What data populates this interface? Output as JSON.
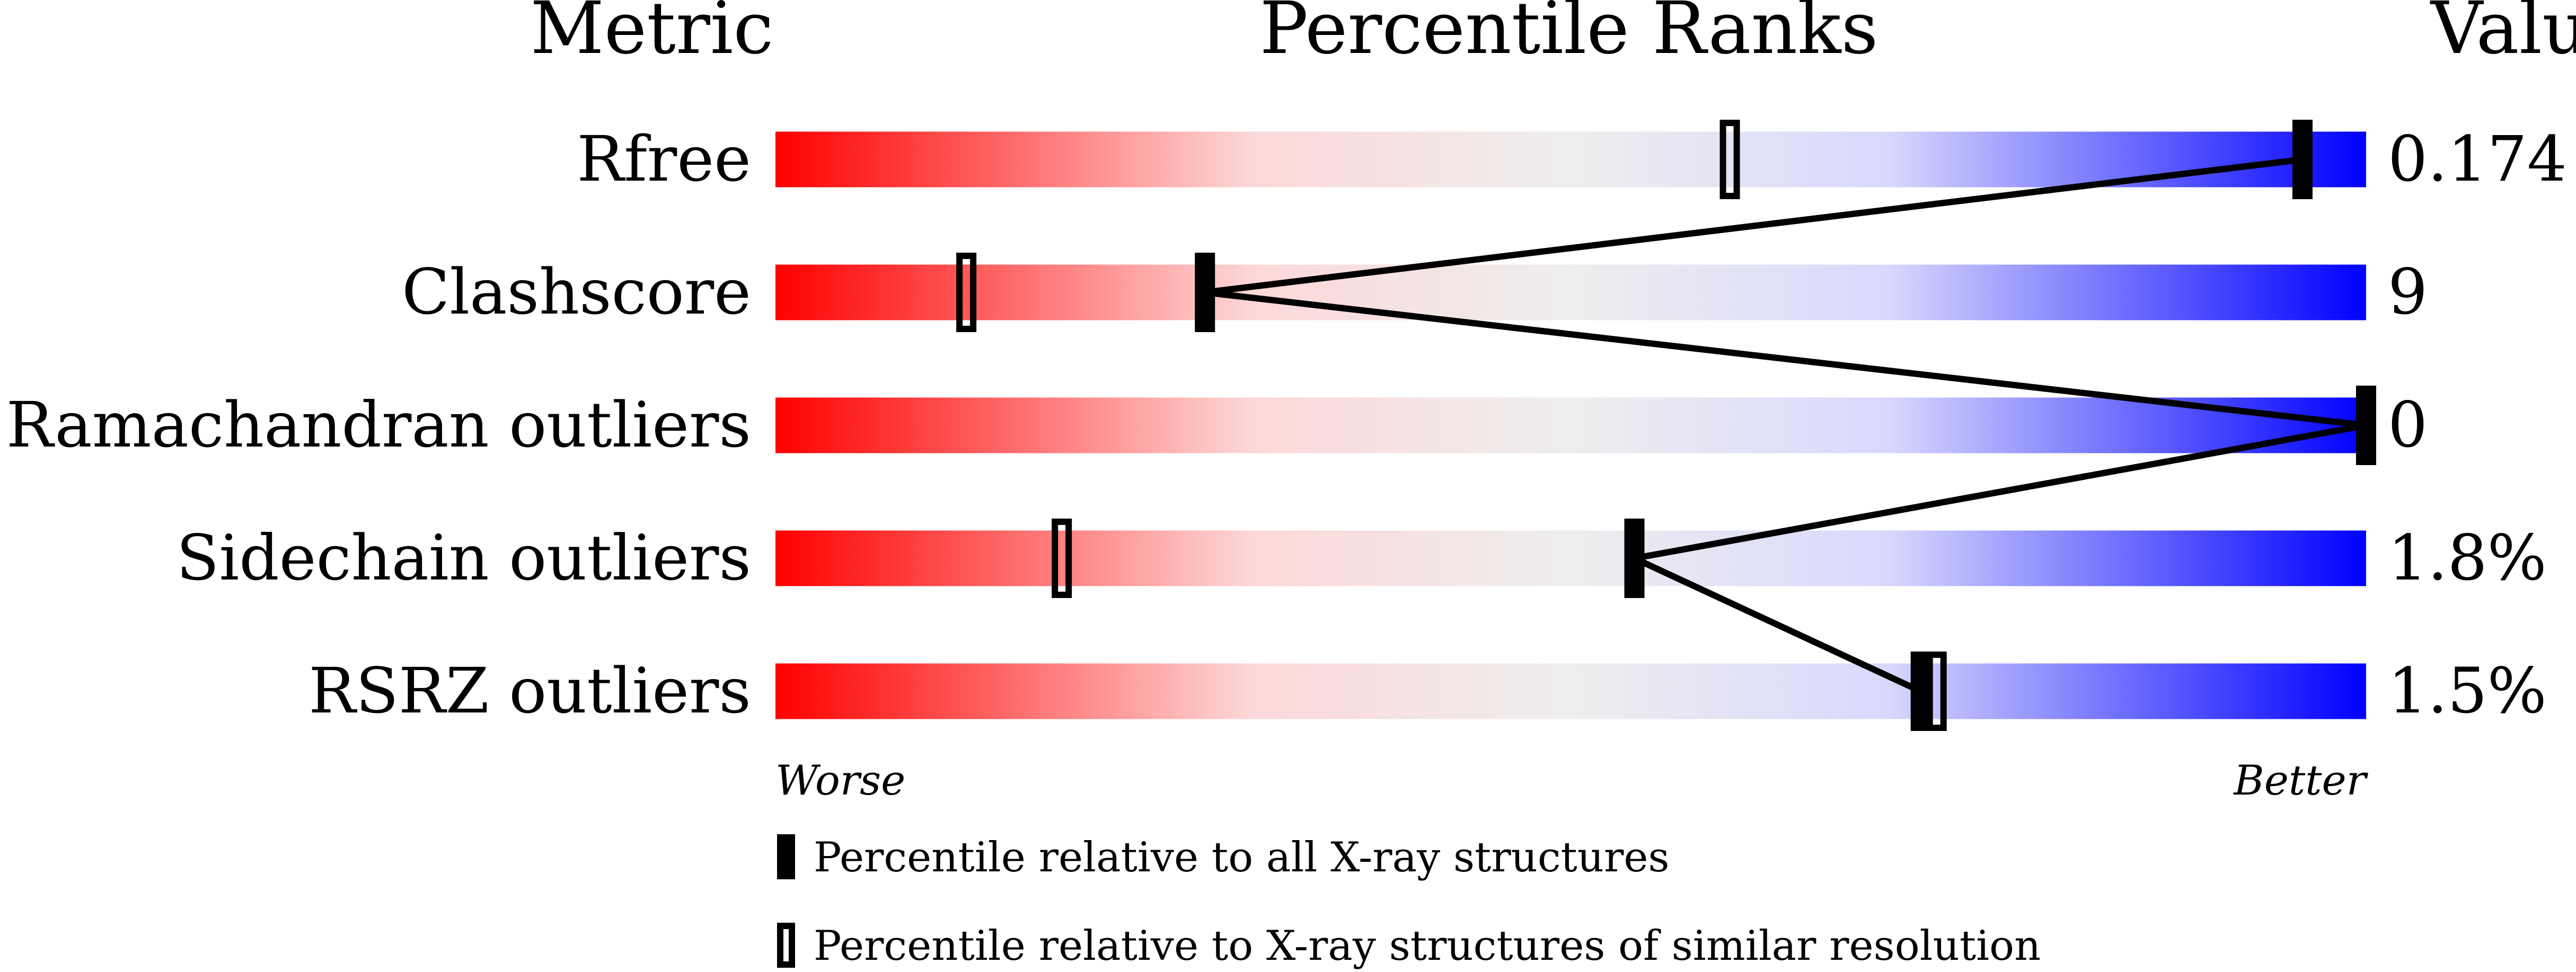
{
  "chart_data": {
    "type": "percentile-slider",
    "headers": {
      "metric": "Metric",
      "ranks": "Percentile Ranks",
      "value": "Value"
    },
    "xlim": [
      0,
      100
    ],
    "axis_labels": {
      "worse": "Worse",
      "better": "Better"
    },
    "colors": {
      "worse": "#ff0000",
      "middle": "#eeeeee",
      "better": "#0000ff",
      "marker": "#000000"
    },
    "rows": [
      {
        "metric": "Rfree",
        "value": "0.174",
        "percentile_all": 96,
        "percentile_similar": 60
      },
      {
        "metric": "Clashscore",
        "value": "9",
        "percentile_all": 27,
        "percentile_similar": 12
      },
      {
        "metric": "Ramachandran outliers",
        "value": "0",
        "percentile_all": 100,
        "percentile_similar": null
      },
      {
        "metric": "Sidechain outliers",
        "value": "1.8%",
        "percentile_all": 54,
        "percentile_similar": 18
      },
      {
        "metric": "RSRZ outliers",
        "value": "1.5%",
        "percentile_all": 72,
        "percentile_similar": 73
      }
    ],
    "legend": [
      {
        "marker": "filled",
        "label": "Percentile relative to all X-ray structures"
      },
      {
        "marker": "hollow",
        "label": "Percentile relative to X-ray structures of similar resolution"
      }
    ]
  }
}
